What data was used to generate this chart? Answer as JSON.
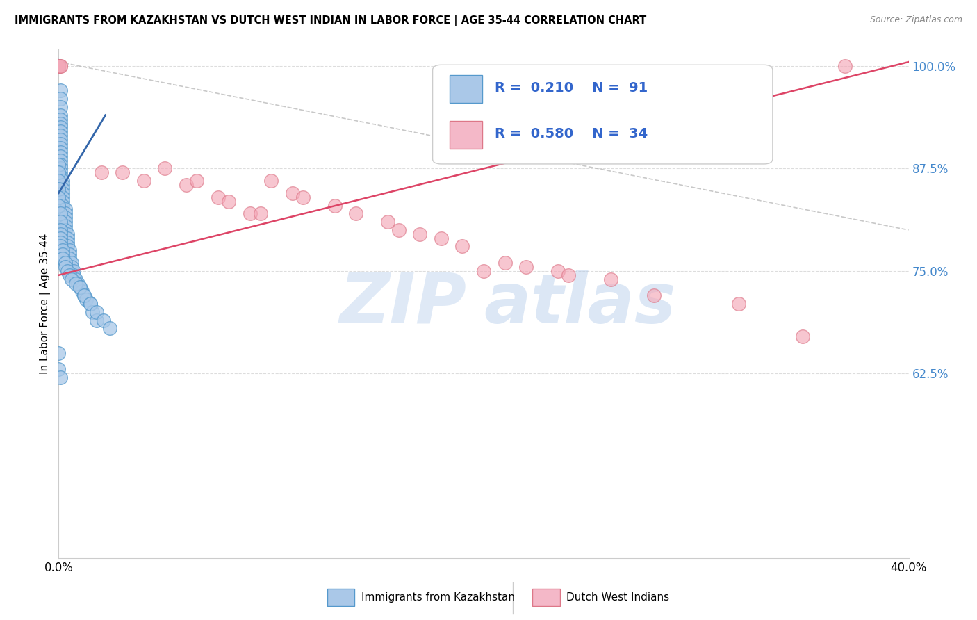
{
  "title": "IMMIGRANTS FROM KAZAKHSTAN VS DUTCH WEST INDIAN IN LABOR FORCE | AGE 35-44 CORRELATION CHART",
  "source": "Source: ZipAtlas.com",
  "ylabel": "In Labor Force | Age 35-44",
  "xmin": 0.0,
  "xmax": 0.4,
  "ymin": 0.4,
  "ymax": 1.02,
  "yticks": [
    0.625,
    0.75,
    0.875,
    1.0
  ],
  "ytick_labels": [
    "62.5%",
    "75.0%",
    "87.5%",
    "100.0%"
  ],
  "blue_R": 0.21,
  "blue_N": 91,
  "pink_R": 0.58,
  "pink_N": 34,
  "blue_color": "#a8c8e8",
  "blue_edge": "#5599cc",
  "pink_color": "#f4a8b8",
  "pink_edge": "#dd7788",
  "blue_line_color": "#3366aa",
  "pink_line_color": "#dd4466",
  "ref_line_color": "#bbbbbb",
  "legend_blue_face": "#aac8e8",
  "legend_pink_face": "#f4b8c8",
  "watermark_zip": "ZIP",
  "watermark_atlas": "atlas",
  "blue_x": [
    0.0,
    0.0,
    0.0,
    0.0,
    0.0,
    0.0,
    0.0,
    0.0,
    0.001,
    0.001,
    0.001,
    0.001,
    0.001,
    0.001,
    0.001,
    0.001,
    0.001,
    0.001,
    0.001,
    0.001,
    0.001,
    0.001,
    0.001,
    0.001,
    0.001,
    0.001,
    0.001,
    0.002,
    0.002,
    0.002,
    0.002,
    0.002,
    0.002,
    0.002,
    0.003,
    0.003,
    0.003,
    0.003,
    0.003,
    0.003,
    0.004,
    0.004,
    0.004,
    0.004,
    0.005,
    0.005,
    0.005,
    0.006,
    0.006,
    0.007,
    0.007,
    0.008,
    0.009,
    0.01,
    0.011,
    0.012,
    0.013,
    0.015,
    0.016,
    0.018,
    0.0,
    0.0,
    0.0,
    0.0,
    0.0,
    0.0,
    0.001,
    0.001,
    0.001,
    0.001,
    0.001,
    0.001,
    0.001,
    0.002,
    0.002,
    0.002,
    0.003,
    0.003,
    0.004,
    0.005,
    0.006,
    0.008,
    0.01,
    0.012,
    0.015,
    0.018,
    0.021,
    0.024,
    0.0,
    0.0,
    0.001
  ],
  "blue_y": [
    1.0,
    1.0,
    1.0,
    1.0,
    1.0,
    1.0,
    1.0,
    1.0,
    0.97,
    0.96,
    0.95,
    0.94,
    0.935,
    0.93,
    0.925,
    0.92,
    0.915,
    0.91,
    0.905,
    0.9,
    0.895,
    0.89,
    0.885,
    0.88,
    0.875,
    0.87,
    0.865,
    0.86,
    0.855,
    0.85,
    0.845,
    0.84,
    0.835,
    0.83,
    0.825,
    0.82,
    0.815,
    0.81,
    0.805,
    0.8,
    0.795,
    0.79,
    0.785,
    0.78,
    0.775,
    0.77,
    0.765,
    0.76,
    0.755,
    0.75,
    0.745,
    0.74,
    0.735,
    0.73,
    0.725,
    0.72,
    0.715,
    0.71,
    0.7,
    0.69,
    0.88,
    0.87,
    0.86,
    0.85,
    0.84,
    0.83,
    0.82,
    0.81,
    0.8,
    0.795,
    0.79,
    0.785,
    0.78,
    0.775,
    0.77,
    0.765,
    0.76,
    0.755,
    0.75,
    0.745,
    0.74,
    0.735,
    0.73,
    0.72,
    0.71,
    0.7,
    0.69,
    0.68,
    0.65,
    0.63,
    0.62
  ],
  "pink_x": [
    0.0,
    0.0,
    0.001,
    0.001,
    0.02,
    0.03,
    0.04,
    0.05,
    0.06,
    0.065,
    0.075,
    0.08,
    0.09,
    0.095,
    0.1,
    0.11,
    0.115,
    0.13,
    0.14,
    0.155,
    0.16,
    0.17,
    0.18,
    0.19,
    0.2,
    0.21,
    0.22,
    0.235,
    0.24,
    0.26,
    0.28,
    0.32,
    0.35,
    0.37
  ],
  "pink_y": [
    1.0,
    1.0,
    1.0,
    1.0,
    0.87,
    0.87,
    0.86,
    0.875,
    0.855,
    0.86,
    0.84,
    0.835,
    0.82,
    0.82,
    0.86,
    0.845,
    0.84,
    0.83,
    0.82,
    0.81,
    0.8,
    0.795,
    0.79,
    0.78,
    0.75,
    0.76,
    0.755,
    0.75,
    0.745,
    0.74,
    0.72,
    0.71,
    0.67,
    1.0
  ],
  "blue_trend_x": [
    0.0,
    0.022
  ],
  "blue_trend_y": [
    0.845,
    0.94
  ],
  "pink_trend_x": [
    0.0,
    0.4
  ],
  "pink_trend_y": [
    0.745,
    1.005
  ]
}
